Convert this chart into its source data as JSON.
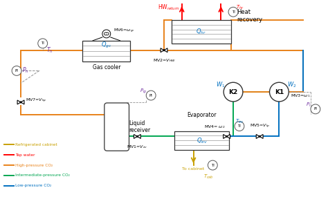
{
  "bg_color": "#ffffff",
  "colors": {
    "orange": "#E8821A",
    "green": "#00A651",
    "blue": "#0070C0",
    "red": "#FF0000",
    "dark_yellow": "#C8A000",
    "black": "#1a1a1a",
    "gray": "#909090",
    "purple": "#7030A0"
  },
  "legend": [
    {
      "label": "Refrigerated cabinet",
      "color": "#C8A000"
    },
    {
      "label": "Tap water",
      "color": "#FF0000"
    },
    {
      "label": "High-pressure CO₂",
      "color": "#E8821A"
    },
    {
      "label": "Intermediate-pressure CO₂",
      "color": "#00A651"
    },
    {
      "label": "Low-pressure CO₂",
      "color": "#0070C0"
    }
  ]
}
